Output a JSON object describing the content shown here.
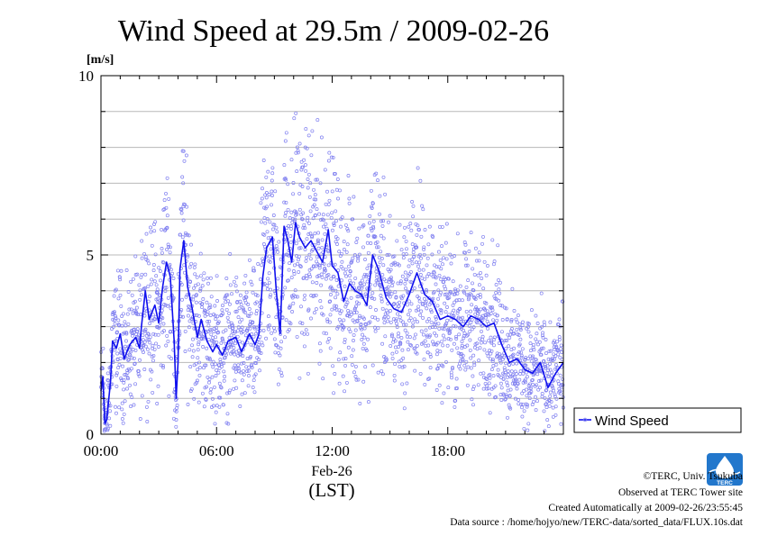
{
  "chart_data": {
    "type": "line",
    "title": "Wind Speed at 29.5m / 2009-02-26",
    "ylabel": "[m/s]",
    "xlabel_date": "Feb-26",
    "xlabel_tz": "(LST)",
    "x_range_hours": [
      0,
      24
    ],
    "ylim": [
      0,
      10
    ],
    "y_ticks": [
      "0",
      "5",
      "10"
    ],
    "y_grid": [
      1,
      2,
      3,
      4,
      5,
      6,
      7,
      8,
      9
    ],
    "x_ticks": [
      {
        "hour": 0,
        "label": "00:00"
      },
      {
        "hour": 6,
        "label": "06:00"
      },
      {
        "hour": 12,
        "label": "12:00"
      },
      {
        "hour": 18,
        "label": "18:00"
      }
    ],
    "legend": {
      "label": "Wind Speed",
      "placement": "outside-right"
    },
    "colors": {
      "line": "#1010ee",
      "points": "#8080f0",
      "grid": "#b8b8b8"
    },
    "series": [
      {
        "name": "Wind Speed",
        "x_hours": [
          0.0,
          0.1,
          0.2,
          0.3,
          0.5,
          0.6,
          0.8,
          1.0,
          1.2,
          1.5,
          1.8,
          2.0,
          2.1,
          2.3,
          2.5,
          2.8,
          3.0,
          3.2,
          3.4,
          3.6,
          3.8,
          3.9,
          4.0,
          4.1,
          4.3,
          4.5,
          4.7,
          5.0,
          5.2,
          5.5,
          5.8,
          6.0,
          6.3,
          6.6,
          7.0,
          7.3,
          7.7,
          8.0,
          8.2,
          8.4,
          8.6,
          8.9,
          9.1,
          9.3,
          9.5,
          9.7,
          9.9,
          10.1,
          10.3,
          10.6,
          10.9,
          11.2,
          11.5,
          11.8,
          12.0,
          12.3,
          12.6,
          12.9,
          13.2,
          13.5,
          13.8,
          14.1,
          14.4,
          14.8,
          15.2,
          15.6,
          16.0,
          16.4,
          16.8,
          17.2,
          17.6,
          18.0,
          18.4,
          18.8,
          19.2,
          19.6,
          20.0,
          20.4,
          20.8,
          21.2,
          21.6,
          22.0,
          22.4,
          22.8,
          23.2,
          23.6,
          24.0
        ],
        "y": [
          1.2,
          1.6,
          0.3,
          0.4,
          1.5,
          2.6,
          2.4,
          2.8,
          2.1,
          2.5,
          2.7,
          2.4,
          3.0,
          4.0,
          3.2,
          3.6,
          3.1,
          4.1,
          4.8,
          4.4,
          2.6,
          1.0,
          2.0,
          4.6,
          5.4,
          4.1,
          3.6,
          2.7,
          3.2,
          2.6,
          2.3,
          2.5,
          2.2,
          2.6,
          2.7,
          2.3,
          2.8,
          2.5,
          2.8,
          4.4,
          5.2,
          5.5,
          4.0,
          2.8,
          5.8,
          5.4,
          4.8,
          5.9,
          5.5,
          5.2,
          5.4,
          5.1,
          4.8,
          5.7,
          4.7,
          4.5,
          3.7,
          4.2,
          4.0,
          3.9,
          3.6,
          5.0,
          4.6,
          3.8,
          3.5,
          3.4,
          3.9,
          4.5,
          3.9,
          3.7,
          3.2,
          3.3,
          3.2,
          3.0,
          3.3,
          3.2,
          3.0,
          3.1,
          2.5,
          2.0,
          2.1,
          1.8,
          1.7,
          2.0,
          1.3,
          1.7,
          2.0
        ]
      }
    ]
  },
  "footer": {
    "copyright": "©TERC, Univ. Tsukuba",
    "observed": "Observed at TERC Tower site",
    "created": "Created Automatically at 2009-02-26/23:55:45",
    "source": "Data source : /home/hojyo/new/TERC-data/sorted_data/FLUX.10s.dat"
  },
  "logo": {
    "text": "TERC"
  }
}
